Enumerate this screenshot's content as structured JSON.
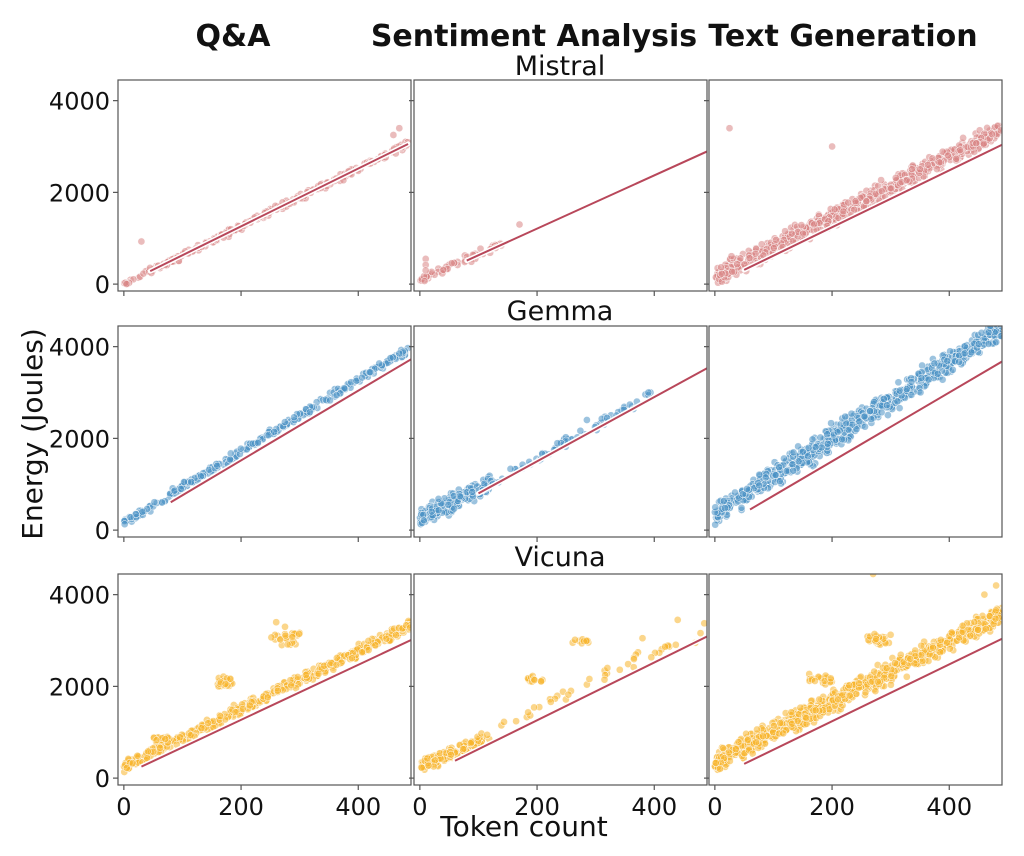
{
  "figure": {
    "column_titles": [
      "Q&A",
      "Sentiment Analysis",
      "Text Generation"
    ],
    "row_titles": [
      "Mistral",
      "Gemma",
      "Vicuna"
    ],
    "xlabel": "Token count",
    "ylabel": "Energy (Joules)",
    "x_tick_labels": [
      "0",
      "200",
      "400"
    ],
    "y_tick_labels": [
      "0",
      "2000",
      "4000"
    ]
  },
  "colors": {
    "Mistral": "#d98585",
    "Gemma": "#4b91c4",
    "Vicuna": "#f7b52c",
    "fit_line": "#b8475a",
    "fit_line_halo": "#ffffff"
  },
  "chart_data": {
    "type": "scatter",
    "xlim": [
      -10,
      490
    ],
    "ylim": [
      -150,
      4450
    ],
    "x_ticks": [
      0,
      200,
      400
    ],
    "y_ticks": [
      0,
      2000,
      4000
    ],
    "grid": false,
    "panels": [
      {
        "model": "Mistral",
        "task": "Q&A",
        "x_range": [
          0,
          485
        ],
        "fit": {
          "slope": 6.3,
          "intercept": 0,
          "x_start": 45,
          "x_end": 485
        },
        "clusters": [
          {
            "x_min": 0,
            "x_max": 485,
            "slope": 6.3,
            "intercept": 0,
            "spread": 110,
            "n": 230
          }
        ],
        "outliers": [
          [
            30,
            930
          ],
          [
            470,
            3400
          ],
          [
            460,
            3250
          ]
        ]
      },
      {
        "model": "Mistral",
        "task": "Sentiment Analysis",
        "x_range": [
          0,
          150
        ],
        "fit": {
          "slope": 5.8,
          "intercept": 50,
          "x_start": 80,
          "x_end": 490
        },
        "clusters": [
          {
            "x_min": 0,
            "x_max": 140,
            "slope": 5.5,
            "intercept": 100,
            "spread": 120,
            "n": 60
          }
        ],
        "outliers": [
          [
            10,
            550
          ],
          [
            10,
            420
          ],
          [
            10,
            300
          ],
          [
            170,
            1300
          ]
        ]
      },
      {
        "model": "Mistral",
        "task": "Text Generation",
        "x_range": [
          0,
          490
        ],
        "fit": {
          "slope": 6.2,
          "intercept": 0,
          "x_start": 50,
          "x_end": 490
        },
        "clusters": [
          {
            "x_min": 0,
            "x_max": 490,
            "slope": 6.6,
            "intercept": 150,
            "spread": 300,
            "n": 600
          }
        ],
        "outliers": [
          [
            25,
            3400
          ],
          [
            200,
            3000
          ]
        ]
      },
      {
        "model": "Gemma",
        "task": "Q&A",
        "x_range": [
          0,
          485
        ],
        "fit": {
          "slope": 7.6,
          "intercept": 0,
          "x_start": 80,
          "x_end": 490
        },
        "clusters": [
          {
            "x_min": 0,
            "x_max": 485,
            "slope": 7.8,
            "intercept": 150,
            "spread": 130,
            "n": 260
          }
        ],
        "outliers": [
          [
            470,
            3850
          ],
          [
            455,
            3750
          ]
        ]
      },
      {
        "model": "Gemma",
        "task": "Sentiment Analysis",
        "x_range": [
          0,
          400
        ],
        "fit": {
          "slope": 7.0,
          "intercept": 100,
          "x_start": 100,
          "x_end": 490
        },
        "clusters": [
          {
            "x_min": 0,
            "x_max": 120,
            "slope": 6.5,
            "intercept": 250,
            "spread": 280,
            "n": 200
          },
          {
            "x_min": 100,
            "x_max": 400,
            "slope": 7.1,
            "intercept": 150,
            "spread": 140,
            "n": 80
          }
        ],
        "outliers": [
          [
            390,
            3000
          ],
          [
            285,
            2400
          ]
        ]
      },
      {
        "model": "Gemma",
        "task": "Text Generation",
        "x_range": [
          0,
          490
        ],
        "fit": {
          "slope": 7.5,
          "intercept": 0,
          "x_start": 60,
          "x_end": 490
        },
        "clusters": [
          {
            "x_min": 0,
            "x_max": 490,
            "slope": 8.3,
            "intercept": 350,
            "spread": 380,
            "n": 700
          }
        ],
        "outliers": [
          [
            470,
            4450
          ],
          [
            455,
            4300
          ]
        ]
      },
      {
        "model": "Vicuna",
        "task": "Q&A",
        "x_range": [
          0,
          490
        ],
        "fit": {
          "slope": 6.0,
          "intercept": 70,
          "x_start": 30,
          "x_end": 490
        },
        "clusters": [
          {
            "x_min": 0,
            "x_max": 490,
            "slope": 6.3,
            "intercept": 250,
            "spread": 180,
            "n": 420
          },
          {
            "x_min": 160,
            "x_max": 185,
            "slope": 0,
            "intercept": 2100,
            "spread": 160,
            "n": 35
          },
          {
            "x_min": 250,
            "x_max": 300,
            "slope": 0,
            "intercept": 3050,
            "spread": 200,
            "n": 25
          },
          {
            "x_min": 50,
            "x_max": 80,
            "slope": 0,
            "intercept": 850,
            "spread": 120,
            "n": 15
          }
        ],
        "outliers": [
          [
            260,
            3400
          ],
          [
            275,
            3300
          ]
        ]
      },
      {
        "model": "Vicuna",
        "task": "Sentiment Analysis",
        "x_range": [
          0,
          490
        ],
        "fit": {
          "slope": 6.3,
          "intercept": 0,
          "x_start": 60,
          "x_end": 490
        },
        "clusters": [
          {
            "x_min": 0,
            "x_max": 120,
            "slope": 5.5,
            "intercept": 250,
            "spread": 200,
            "n": 130
          },
          {
            "x_min": 120,
            "x_max": 490,
            "slope": 6.2,
            "intercept": 300,
            "spread": 250,
            "n": 40
          },
          {
            "x_min": 180,
            "x_max": 210,
            "slope": 0,
            "intercept": 2150,
            "spread": 100,
            "n": 12
          },
          {
            "x_min": 260,
            "x_max": 290,
            "slope": 0,
            "intercept": 2980,
            "spread": 80,
            "n": 12
          }
        ],
        "outliers": [
          [
            380,
            3050
          ],
          [
            440,
            3450
          ],
          [
            470,
            2950
          ],
          [
            320,
            2400
          ]
        ]
      },
      {
        "model": "Vicuna",
        "task": "Text Generation",
        "x_range": [
          0,
          490
        ],
        "fit": {
          "slope": 6.2,
          "intercept": 0,
          "x_start": 50,
          "x_end": 490
        },
        "clusters": [
          {
            "x_min": 0,
            "x_max": 490,
            "slope": 6.6,
            "intercept": 350,
            "spread": 340,
            "n": 750
          },
          {
            "x_min": 260,
            "x_max": 300,
            "slope": 0,
            "intercept": 3000,
            "spread": 200,
            "n": 35
          },
          {
            "x_min": 160,
            "x_max": 200,
            "slope": 0,
            "intercept": 2150,
            "spread": 150,
            "n": 20
          }
        ],
        "outliers": [
          [
            270,
            4450
          ],
          [
            480,
            4200
          ],
          [
            460,
            4000
          ]
        ]
      }
    ]
  }
}
